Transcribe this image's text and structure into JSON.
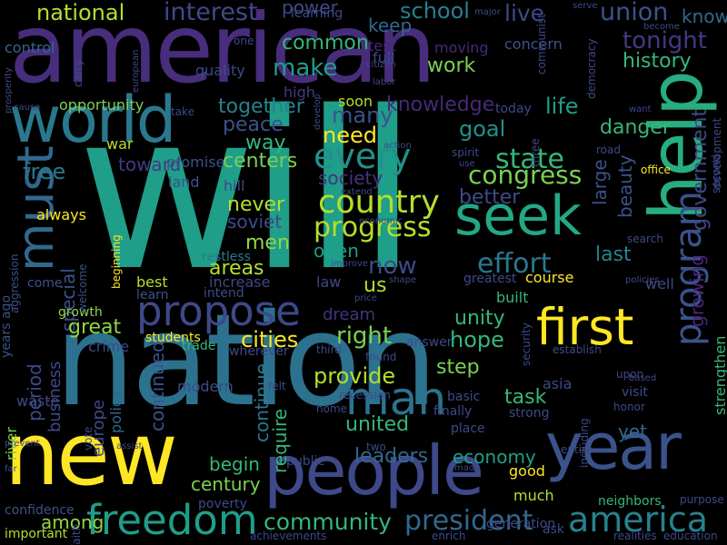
{
  "palette": [
    "#440154",
    "#482878",
    "#3e4989",
    "#31688e",
    "#26828e",
    "#1f9e89",
    "#35b779",
    "#6ece58",
    "#b5de2b",
    "#fde725"
  ],
  "words": [
    {
      "text": "will",
      "color": "#1f9e89"
    },
    {
      "text": "nation",
      "color": "#2c728e"
    },
    {
      "text": "american",
      "color": "#472d7b"
    },
    {
      "text": "new",
      "color": "#fde725"
    },
    {
      "text": "year",
      "color": "#3b528b"
    },
    {
      "text": "people",
      "color": "#3e4989"
    },
    {
      "text": "help",
      "color": "#27ad81"
    },
    {
      "text": "world",
      "color": "#2a788e"
    },
    {
      "text": "must",
      "color": "#31688e"
    },
    {
      "text": "seek",
      "color": "#22a884"
    },
    {
      "text": "first",
      "color": "#fde725"
    },
    {
      "text": "freedom",
      "color": "#1f9e89"
    },
    {
      "text": "america",
      "color": "#26828e"
    },
    {
      "text": "propose",
      "color": "#3e4989"
    },
    {
      "text": "president",
      "color": "#31688e"
    },
    {
      "text": "man",
      "color": "#2c728e"
    },
    {
      "text": "program",
      "color": "#3b528b"
    },
    {
      "text": "every",
      "color": "#21918c"
    },
    {
      "text": "country",
      "color": "#b5de2b"
    },
    {
      "text": "state",
      "color": "#35b779"
    },
    {
      "text": "congress",
      "color": "#7ad151"
    },
    {
      "text": "effort",
      "color": "#2a788e"
    },
    {
      "text": "progress",
      "color": "#b5de2b"
    },
    {
      "text": "government",
      "color": "#3e4989"
    },
    {
      "text": "community",
      "color": "#35b779"
    },
    {
      "text": "national",
      "color": "#b5de2b"
    },
    {
      "text": "interest",
      "color": "#3e4989"
    },
    {
      "text": "union",
      "color": "#3b528b"
    },
    {
      "text": "live",
      "color": "#3e4989"
    },
    {
      "text": "school",
      "color": "#26828e"
    },
    {
      "text": "tonight",
      "color": "#443983"
    },
    {
      "text": "history",
      "color": "#35b779"
    },
    {
      "text": "power",
      "color": "#3e4989"
    },
    {
      "text": "know",
      "color": "#31688e"
    },
    {
      "text": "keep",
      "color": "#31688e"
    },
    {
      "text": "make",
      "color": "#1f9e89"
    },
    {
      "text": "common",
      "color": "#35b779"
    },
    {
      "text": "work",
      "color": "#7ad151"
    },
    {
      "text": "together",
      "color": "#26828e"
    },
    {
      "text": "knowledge",
      "color": "#482878"
    },
    {
      "text": "life",
      "color": "#1f9e89"
    },
    {
      "text": "many",
      "color": "#3b528b"
    },
    {
      "text": "goal",
      "color": "#21918c"
    },
    {
      "text": "peace",
      "color": "#3b528b"
    },
    {
      "text": "need",
      "color": "#fde725"
    },
    {
      "text": "way",
      "color": "#35b779"
    },
    {
      "text": "danger",
      "color": "#35b779"
    },
    {
      "text": "centers",
      "color": "#7ad151"
    },
    {
      "text": "free",
      "color": "#2a788e"
    },
    {
      "text": "toward",
      "color": "#443983"
    },
    {
      "text": "society",
      "color": "#46327e"
    },
    {
      "text": "better",
      "color": "#3e4989"
    },
    {
      "text": "beauty",
      "color": "#3b528b"
    },
    {
      "text": "large",
      "color": "#3b528b"
    },
    {
      "text": "growing",
      "color": "#482878"
    },
    {
      "text": "open",
      "color": "#1f9e89"
    },
    {
      "text": "never",
      "color": "#b5de2b"
    },
    {
      "text": "soviet",
      "color": "#3e4989"
    },
    {
      "text": "men",
      "color": "#8fd744"
    },
    {
      "text": "special",
      "color": "#3b528b"
    },
    {
      "text": "areas",
      "color": "#b5de2b"
    },
    {
      "text": "now",
      "color": "#3e4989"
    },
    {
      "text": "us",
      "color": "#b5de2b"
    },
    {
      "text": "last",
      "color": "#26828e"
    },
    {
      "text": "great",
      "color": "#8fd744"
    },
    {
      "text": "period",
      "color": "#3e4989"
    },
    {
      "text": "cities",
      "color": "#fde725"
    },
    {
      "text": "right",
      "color": "#7ad151"
    },
    {
      "text": "unity",
      "color": "#35b779"
    },
    {
      "text": "hope",
      "color": "#35b779"
    },
    {
      "text": "dream",
      "color": "#46327e"
    },
    {
      "text": "continued",
      "color": "#3b528b"
    },
    {
      "text": "provide",
      "color": "#b5de2b"
    },
    {
      "text": "step",
      "color": "#7ad151"
    },
    {
      "text": "task",
      "color": "#35b779"
    },
    {
      "text": "united",
      "color": "#35b779"
    },
    {
      "text": "yet",
      "color": "#31688e"
    },
    {
      "text": "continue",
      "color": "#2a788e"
    },
    {
      "text": "require",
      "color": "#35b779"
    },
    {
      "text": "business",
      "color": "#3e4989"
    },
    {
      "text": "europe",
      "color": "#3e4989"
    },
    {
      "text": "begin",
      "color": "#35b779"
    },
    {
      "text": "century",
      "color": "#7ad151"
    },
    {
      "text": "leaders",
      "color": "#31688e"
    },
    {
      "text": "economy",
      "color": "#1f9e89"
    },
    {
      "text": "among",
      "color": "#8fd744"
    },
    {
      "text": "good",
      "color": "#fde725"
    },
    {
      "text": "much",
      "color": "#b5de2b"
    },
    {
      "text": "policy",
      "color": "#31688e"
    },
    {
      "text": "control",
      "color": "#31688e"
    },
    {
      "text": "opportunity",
      "color": "#7ad151"
    },
    {
      "text": "quality",
      "color": "#3e4989"
    },
    {
      "text": "full",
      "color": "#3e4989"
    },
    {
      "text": "test",
      "color": "#482878"
    },
    {
      "text": "moving",
      "color": "#482878"
    },
    {
      "text": "concern",
      "color": "#3b528b"
    },
    {
      "text": "learning",
      "color": "#3e4989"
    },
    {
      "text": "soon",
      "color": "#b5de2b"
    },
    {
      "text": "high",
      "color": "#443983"
    },
    {
      "text": "today",
      "color": "#3e4989"
    },
    {
      "text": "war",
      "color": "#b5de2b"
    },
    {
      "text": "promise",
      "color": "#3b528b"
    },
    {
      "text": "land",
      "color": "#3b528b"
    },
    {
      "text": "hill",
      "color": "#3e4989"
    },
    {
      "text": "always",
      "color": "#fde725"
    },
    {
      "text": "restless",
      "color": "#2a788e"
    },
    {
      "text": "increase",
      "color": "#3e4989"
    },
    {
      "text": "best",
      "color": "#b5de2b"
    },
    {
      "text": "learn",
      "color": "#3b528b"
    },
    {
      "text": "intend",
      "color": "#3e4989"
    },
    {
      "text": "law",
      "color": "#3e4989"
    },
    {
      "text": "greatest",
      "color": "#3e4989"
    },
    {
      "text": "course",
      "color": "#fde725"
    },
    {
      "text": "built",
      "color": "#35b779"
    },
    {
      "text": "well",
      "color": "#3e4989"
    },
    {
      "text": "come",
      "color": "#3b528b"
    },
    {
      "text": "growth",
      "color": "#8fd744"
    },
    {
      "text": "waste",
      "color": "#3e4989"
    },
    {
      "text": "crime",
      "color": "#3e4989"
    },
    {
      "text": "students",
      "color": "#fde725"
    },
    {
      "text": "trade",
      "color": "#35b779"
    },
    {
      "text": "modern",
      "color": "#3e4989"
    },
    {
      "text": "river",
      "color": "#7ad151"
    },
    {
      "text": "basic",
      "color": "#3e4989"
    },
    {
      "text": "finally",
      "color": "#3e4989"
    },
    {
      "text": "place",
      "color": "#3e4989"
    },
    {
      "text": "asia",
      "color": "#3e4989"
    },
    {
      "text": "strong",
      "color": "#3e4989"
    },
    {
      "text": "visit",
      "color": "#3e4989"
    },
    {
      "text": "neighbors",
      "color": "#35b779"
    },
    {
      "text": "poverty",
      "color": "#3e4989"
    },
    {
      "text": "public",
      "color": "#3e4989"
    },
    {
      "text": "confidence",
      "color": "#3b528b"
    },
    {
      "text": "important",
      "color": "#b5de2b"
    },
    {
      "text": "achievements",
      "color": "#3e4989"
    },
    {
      "text": "enrich",
      "color": "#3e4989"
    },
    {
      "text": "generation",
      "color": "#3e4989"
    },
    {
      "text": "ask",
      "color": "#3e4989"
    },
    {
      "text": "realities",
      "color": "#3e4989"
    },
    {
      "text": "education",
      "color": "#3e4989"
    },
    {
      "text": "purpose",
      "color": "#3e4989"
    },
    {
      "text": "establish",
      "color": "#3e4989"
    },
    {
      "text": "strengthen",
      "color": "#35b779"
    },
    {
      "text": "development",
      "color": "#3e4989"
    },
    {
      "text": "second",
      "color": "#3e4989"
    },
    {
      "text": "years ago",
      "color": "#3b528b"
    },
    {
      "text": "aggression",
      "color": "#3b528b"
    },
    {
      "text": "welcome",
      "color": "#3b528b"
    },
    {
      "text": "beginning",
      "color": "#fde725"
    },
    {
      "text": "vote",
      "color": "#3e4989"
    },
    {
      "text": "wherever",
      "color": "#3e4989"
    },
    {
      "text": "third",
      "color": "#3e4989"
    },
    {
      "text": "answer",
      "color": "#3e4989"
    },
    {
      "text": "found",
      "color": "#3e4989"
    },
    {
      "text": "recession",
      "color": "#3e4989"
    },
    {
      "text": "home",
      "color": "#3e4989"
    },
    {
      "text": "felt",
      "color": "#3e4989"
    },
    {
      "text": "two",
      "color": "#3e4989"
    },
    {
      "text": "made",
      "color": "#3e4989"
    },
    {
      "text": "assist",
      "color": "#3e4989"
    },
    {
      "text": "faith",
      "color": "#3e4989"
    },
    {
      "text": "prevent",
      "color": "#3e4989"
    },
    {
      "text": "far",
      "color": "#3e4989"
    },
    {
      "text": "honor",
      "color": "#3e4989"
    },
    {
      "text": "upon",
      "color": "#3e4989"
    },
    {
      "text": "based",
      "color": "#3e4989"
    },
    {
      "text": "entire",
      "color": "#3e4989"
    },
    {
      "text": "including",
      "color": "#3e4989"
    },
    {
      "text": "security",
      "color": "#3e4989"
    },
    {
      "text": "shape",
      "color": "#3e4989"
    },
    {
      "text": "price",
      "color": "#3e4989"
    },
    {
      "text": "improve",
      "color": "#3e4989"
    },
    {
      "text": "economic",
      "color": "#3e4989"
    },
    {
      "text": "extend",
      "color": "#3e4989"
    },
    {
      "text": "action",
      "color": "#3e4989"
    },
    {
      "text": "spirit",
      "color": "#3e4989"
    },
    {
      "text": "use",
      "color": "#3e4989"
    },
    {
      "text": "three",
      "color": "#3e4989"
    },
    {
      "text": "road",
      "color": "#3e4989"
    },
    {
      "text": "office",
      "color": "#fde725"
    },
    {
      "text": "search",
      "color": "#3e4989"
    },
    {
      "text": "policies",
      "color": "#3e4989"
    },
    {
      "text": "want",
      "color": "#3e4989"
    },
    {
      "text": "take",
      "color": "#3e4989"
    },
    {
      "text": "cause",
      "color": "#3e4989"
    },
    {
      "text": "develop",
      "color": "#3e4989"
    },
    {
      "text": "prosperity",
      "color": "#3e4989"
    },
    {
      "text": "carry",
      "color": "#3e4989"
    },
    {
      "text": "european",
      "color": "#3e4989"
    },
    {
      "text": "one",
      "color": "#3e4989"
    },
    {
      "text": "citizen",
      "color": "#3e4989"
    },
    {
      "text": "labor",
      "color": "#3e4989"
    },
    {
      "text": "communist",
      "color": "#3e4989"
    },
    {
      "text": "democracy",
      "color": "#3e4989"
    },
    {
      "text": "major",
      "color": "#3e4989"
    },
    {
      "text": "serve",
      "color": "#3e4989"
    },
    {
      "text": "become",
      "color": "#3e4989"
    }
  ]
}
